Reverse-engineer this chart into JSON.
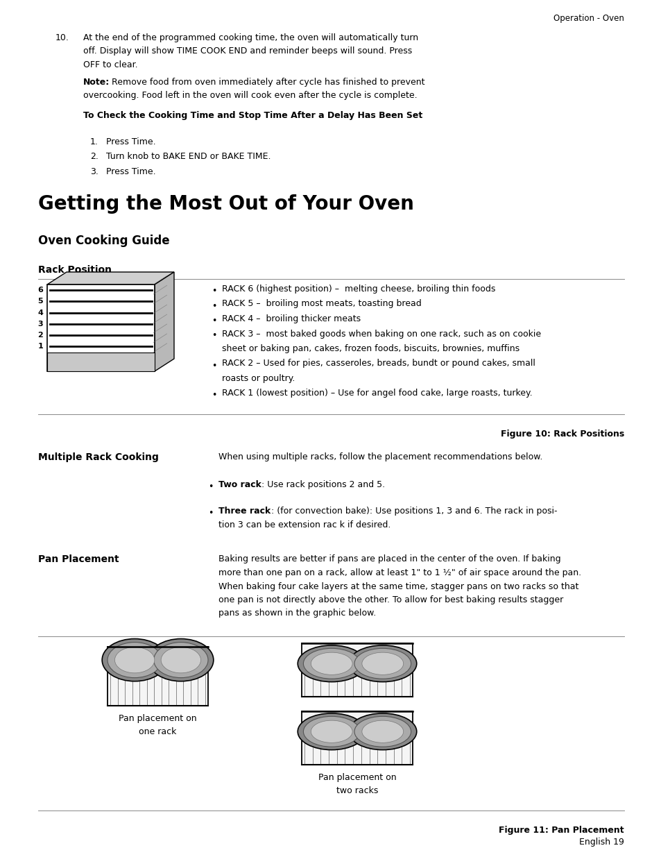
{
  "bg_color": "#ffffff",
  "page_width": 9.54,
  "page_height": 12.35,
  "header_text": "Operation - Oven",
  "item10_text_line1": "At the end of the programmed cooking time, the oven will automatically turn",
  "item10_text_line2": "off. Display will show TIME COOK END and reminder beeps will sound. Press",
  "item10_text_line3": "OFF to clear.",
  "note_bold": "Note:",
  "note_text_line1": " Remove food from oven immediately after cycle has finished to prevent",
  "note_text_line2": "overcooking. Food left in the oven will cook even after the cycle is complete.",
  "subheading": "To Check the Cooking Time and Stop Time After a Delay Has Been Set",
  "steps": [
    "Press Time.",
    "Turn knob to BAKE END or BAKE TIME.",
    "Press Time."
  ],
  "big_heading": "Getting the Most Out of Your Oven",
  "section_heading": "Oven Cooking Guide",
  "rack_heading": "Rack Position",
  "rack_bullets_line1": [
    "RACK 6 (highest position) –  melting cheese, broiling thin foods",
    "RACK 5 –  broiling most meats, toasting bread",
    "RACK 4 –  broiling thicker meats",
    "RACK 3 –  most baked goods when baking on one rack, such as on cookie",
    "RACK 2 – Used for pies, casseroles, breads, bundt or pound cakes, small",
    "RACK 1 (lowest position) – Use for angel food cake, large roasts, turkey."
  ],
  "rack_bullets_line2": [
    "",
    "",
    "",
    "sheet or baking pan, cakes, frozen foods, biscuits, brownies, muffins",
    "roasts or poultry.",
    ""
  ],
  "figure10_caption": "Figure 10: Rack Positions",
  "multi_rack_heading": "Multiple Rack Cooking",
  "multi_rack_intro": "When using multiple racks, follow the placement recommendations below.",
  "two_rack_bold": "Two rack",
  "two_rack_rest": ": Use rack positions 2 and 5.",
  "three_rack_bold": "Three rack",
  "three_rack_rest_1": ": (for convection bake): Use positions 1, 3 and 6. The rack in posi-",
  "three_rack_rest_2": "tion 3 can be extension rac k if desired.",
  "pan_heading": "Pan Placement",
  "pan_text_1": "Baking results are better if pans are placed in the center of the oven. If baking",
  "pan_text_2": "more than one pan on a rack, allow at least 1\" to 1 ½\" of air space around the pan.",
  "pan_text_3": "When baking four cake layers at the same time, stagger pans on two racks so that",
  "pan_text_4": "one pan is not directly above the other. To allow for best baking results stagger",
  "pan_text_5": "pans as shown in the graphic below.",
  "pan_label1_1": "Pan placement on",
  "pan_label1_2": "one rack",
  "pan_label2_1": "Pan placement on",
  "pan_label2_2": "two racks",
  "figure11_caption": "Figure 11: Pan Placement",
  "footer_text": "English 19"
}
